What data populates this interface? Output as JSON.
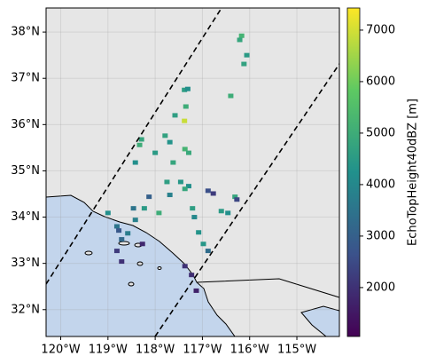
{
  "chart_data": {
    "type": "map",
    "colorbar_label": "EchoTopHeight40dBZ [m]",
    "colormap": "viridis",
    "xlim": [
      -120.31,
      -114.1
    ],
    "ylim": [
      31.42,
      38.52
    ],
    "clim": [
      1050,
      7430
    ],
    "xticks": [
      {
        "value": -120,
        "label": "120°W"
      },
      {
        "value": -119,
        "label": "119°W"
      },
      {
        "value": -118,
        "label": "118°W"
      },
      {
        "value": -117,
        "label": "117°W"
      },
      {
        "value": -116,
        "label": "116°W"
      },
      {
        "value": -115,
        "label": "115°W"
      }
    ],
    "yticks": [
      {
        "value": 32,
        "label": "32°N"
      },
      {
        "value": 33,
        "label": "33°N"
      },
      {
        "value": 34,
        "label": "34°N"
      },
      {
        "value": 35,
        "label": "35°N"
      },
      {
        "value": 36,
        "label": "36°N"
      },
      {
        "value": 37,
        "label": "37°N"
      },
      {
        "value": 38,
        "label": "38°N"
      }
    ],
    "cticks": [
      2000,
      3000,
      4000,
      5000,
      6000,
      7000
    ],
    "grid": true,
    "lon": [
      -116.17,
      -116.21,
      -116.06,
      -116.12,
      -117.38,
      -117.31,
      -117.35,
      -117.58,
      -117.38,
      -116.4,
      -118.29,
      -118.33,
      -117.79,
      -117.69,
      -117.37,
      -117.29,
      -117.62,
      -118.0,
      -118.42,
      -117.46,
      -117.29,
      -117.37,
      -117.75,
      -117.69,
      -116.88,
      -116.77,
      -116.31,
      -116.27,
      -116.6,
      -116.46,
      -118.13,
      -118.23,
      -117.92,
      -118.46,
      -118.42,
      -119.0,
      -118.81,
      -118.77,
      -118.71,
      -118.81,
      -118.71,
      -118.58,
      -117.17,
      -117.08,
      -116.98,
      -116.88,
      -117.21,
      -117.37,
      -117.23,
      -117.13,
      -118.27
    ],
    "lat": [
      37.92,
      37.83,
      37.5,
      37.31,
      36.75,
      36.77,
      36.39,
      36.2,
      36.08,
      36.62,
      35.68,
      35.56,
      35.76,
      35.62,
      35.47,
      35.39,
      35.18,
      35.39,
      35.18,
      34.76,
      34.67,
      34.61,
      34.76,
      34.48,
      34.57,
      34.51,
      34.44,
      34.38,
      34.13,
      34.09,
      34.44,
      34.19,
      34.09,
      34.19,
      33.94,
      34.09,
      33.8,
      33.71,
      33.52,
      33.27,
      33.04,
      33.65,
      34.0,
      33.67,
      33.42,
      33.27,
      34.19,
      32.94,
      32.75,
      32.41,
      33.42
    ],
    "values": [
      5200,
      4800,
      4500,
      4700,
      4600,
      4200,
      5000,
      4600,
      6900,
      5000,
      4800,
      5000,
      4700,
      4300,
      5200,
      4900,
      4800,
      4500,
      4200,
      4400,
      4200,
      4800,
      4600,
      3800,
      2600,
      2200,
      4800,
      2400,
      4500,
      4200,
      3000,
      4500,
      5000,
      3500,
      3800,
      4200,
      3500,
      2800,
      3200,
      2200,
      2000,
      3700,
      4000,
      4300,
      4400,
      3300,
      4600,
      2000,
      1900,
      1700,
      1800
    ]
  }
}
